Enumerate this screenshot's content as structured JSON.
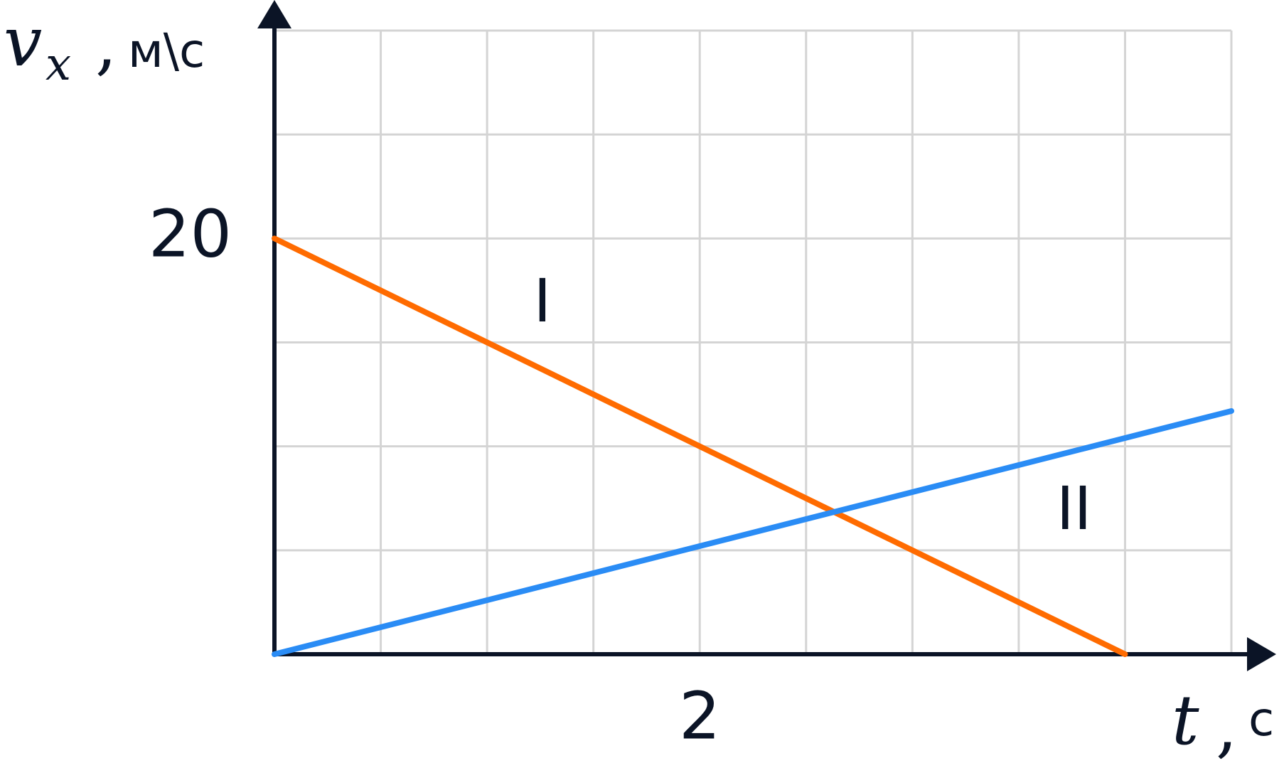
{
  "chart_data": {
    "type": "line",
    "xlabel": {
      "variable": "t",
      "separator": ",",
      "unit": "с"
    },
    "ylabel": {
      "variable": "v",
      "subscript": "x",
      "separator": ",",
      "unit": "м\\с"
    },
    "x_ticks": [
      {
        "value": 2,
        "label": "2"
      }
    ],
    "y_ticks": [
      {
        "value": 20,
        "label": "20"
      }
    ],
    "xlim": [
      0,
      4.5
    ],
    "ylim": [
      0,
      30
    ],
    "grid": true,
    "grid_step": {
      "x": 0.5,
      "y": 5
    },
    "series": [
      {
        "name": "I",
        "color": "#ff6b00",
        "points": [
          [
            0,
            20
          ],
          [
            4,
            0
          ]
        ]
      },
      {
        "name": "II",
        "color": "#2a8cf5",
        "points": [
          [
            0,
            0
          ],
          [
            4.5,
            11.7
          ]
        ]
      }
    ]
  }
}
